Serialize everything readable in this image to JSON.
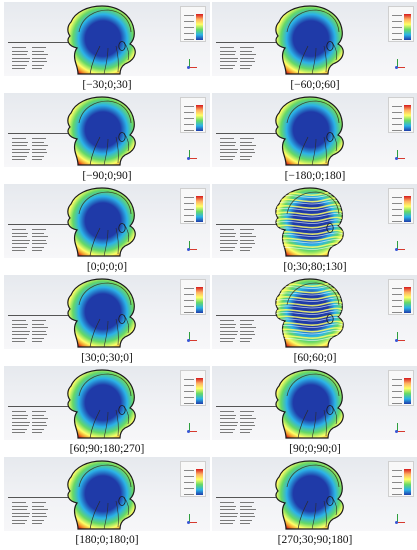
{
  "figure": {
    "panels": [
      {
        "caption": "[−30;0;30]",
        "pattern": "smooth"
      },
      {
        "caption": "[−60;0;60]",
        "pattern": "smooth"
      },
      {
        "caption": "[−90;0;90]",
        "pattern": "smooth"
      },
      {
        "caption": "[−180;0;180]",
        "pattern": "smooth"
      },
      {
        "caption": "[0;0;0;0]",
        "pattern": "smooth"
      },
      {
        "caption": "[0;30;80;130]",
        "pattern": "fringed"
      },
      {
        "caption": "[30;0;30;0]",
        "pattern": "smooth"
      },
      {
        "caption": "[60;60;0]",
        "pattern": "fringed"
      },
      {
        "caption": "[60;90;180;270]",
        "pattern": "smooth"
      },
      {
        "caption": "[90;0;90;0]",
        "pattern": "smooth"
      },
      {
        "caption": "[180;0;180;0]",
        "pattern": "smooth"
      },
      {
        "caption": "[270;30;90;180]",
        "pattern": "smooth"
      }
    ],
    "colors": {
      "field_low": "#1f3aa8",
      "field_mid_low": "#2bb3e8",
      "field_mid": "#66d866",
      "field_mid_high": "#ffff66",
      "field_high": "#d7191c",
      "background": "#eceef2"
    }
  }
}
